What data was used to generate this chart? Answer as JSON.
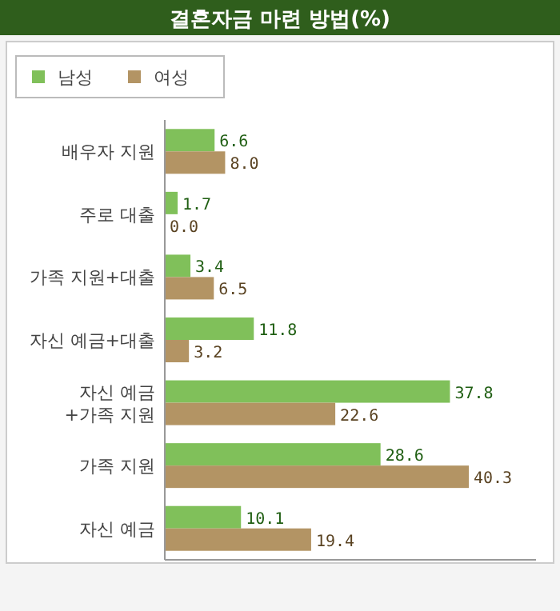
{
  "chart_data": {
    "type": "bar",
    "orientation": "horizontal",
    "title": "결혼자금 마련 방법(%)",
    "categories": [
      "배우자 지원",
      "주로 대출",
      "가족 지원+대출",
      "자신 예금+대출",
      "자신 예금 +가족 지원",
      "가족 지원",
      "자신 예금"
    ],
    "series": [
      {
        "name": "남성",
        "color": "#80c05a",
        "values": [
          6.6,
          1.7,
          3.4,
          11.8,
          37.8,
          28.6,
          10.1
        ],
        "value_labels": [
          "6.6",
          "1.7",
          "3.4",
          "11.8",
          "37.8",
          "28.6",
          "10.1"
        ]
      },
      {
        "name": "여성",
        "color": "#b39464",
        "values": [
          8.0,
          0.0,
          6.5,
          3.2,
          22.6,
          40.3,
          19.4
        ],
        "value_labels": [
          "8.0",
          "0.0",
          "6.5",
          "3.2",
          "22.6",
          "40.3",
          "19.4"
        ]
      }
    ],
    "legend": "top left",
    "grid": false
  }
}
